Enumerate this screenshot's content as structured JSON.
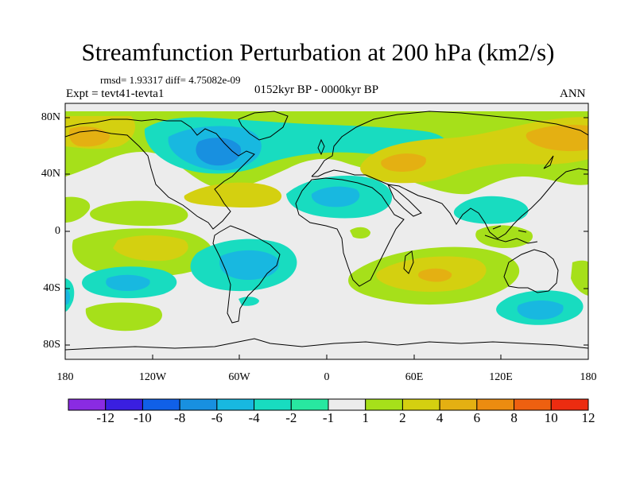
{
  "plot": {
    "title": "Streamfunction Perturbation at 200 hPa (km2/s)",
    "stats_line": "rmsd= 1.93317 diff= 4.75082e-09",
    "experiment": "Expt = tevt41-tevta1",
    "period": "0152kyr BP - 0000kyr BP",
    "season": "ANN"
  },
  "axes": {
    "lat_labels": [
      "80N",
      "40N",
      "0",
      "40S",
      "80S"
    ],
    "lon_labels": [
      "180",
      "120W",
      "60W",
      "0",
      "60E",
      "120E",
      "180"
    ]
  },
  "colorbar": {
    "labels": [
      "-12",
      "-10",
      "-8",
      "-6",
      "-4",
      "-2",
      "-1",
      "1",
      "2",
      "4",
      "6",
      "8",
      "10",
      "12"
    ],
    "colors": [
      "#8a2be2",
      "#3a1fe0",
      "#1060e8",
      "#1890e0",
      "#18b8e0",
      "#18dcc0",
      "#28e8a0",
      "#ececec",
      "#a6e01a",
      "#d4d010",
      "#e4b012",
      "#ec8c10",
      "#ee6010",
      "#ec2c10"
    ]
  },
  "colors": {
    "land_outline": "#000000",
    "background": "#ececec"
  }
}
